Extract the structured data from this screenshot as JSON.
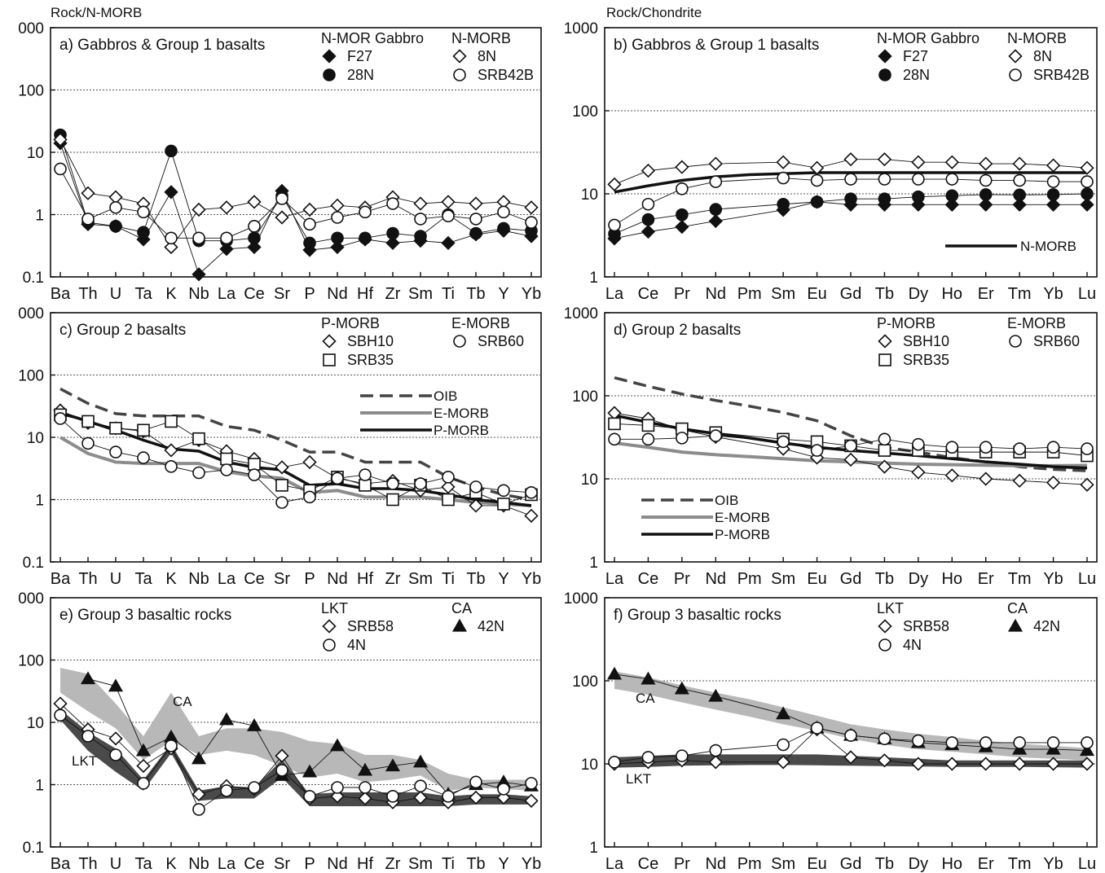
{
  "figure": {
    "ylabel_left": "Rock/N-MORB",
    "ylabel_right": "Rock/Chondrite"
  },
  "chart_data": [
    {
      "id": "a",
      "type": "line",
      "yscale": "log",
      "ylim": [
        0.1,
        1000
      ],
      "ytick_labels": [
        "000",
        "100",
        "10",
        "1",
        "0.1"
      ],
      "title": "a) Gabbros & Group 1 basalts",
      "categories": [
        "Ba",
        "Th",
        "U",
        "Ta",
        "K",
        "Nb",
        "La",
        "Ce",
        "Sr",
        "P",
        "Nd",
        "Hf",
        "Zr",
        "Sm",
        "Ti",
        "Tb",
        "Y",
        "Yb"
      ],
      "legend": [
        {
          "group": "N-MOR Gabbro",
          "entries": [
            "F27",
            "28N"
          ]
        },
        {
          "group": "N-MORB",
          "entries": [
            "8N",
            "SRB42B"
          ]
        }
      ],
      "series": [
        {
          "name": "F27",
          "marker": "diamond-filled",
          "values": [
            14,
            0.7,
            0.65,
            0.4,
            2.3,
            0.11,
            0.28,
            0.3,
            2.4,
            0.27,
            0.3,
            0.4,
            0.35,
            0.38,
            0.35,
            0.48,
            0.55,
            0.45
          ]
        },
        {
          "name": "28N",
          "marker": "circle-filled",
          "values": [
            19,
            0.75,
            0.65,
            0.52,
            10.5,
            0.38,
            0.38,
            0.42,
            2.0,
            0.35,
            0.42,
            0.42,
            0.5,
            0.45,
            1.0,
            0.5,
            0.6,
            0.55
          ]
        },
        {
          "name": "8N",
          "marker": "diamond-open",
          "values": [
            16,
            2.2,
            1.9,
            1.5,
            0.3,
            1.2,
            1.3,
            1.6,
            0.9,
            1.2,
            1.4,
            1.3,
            1.9,
            1.5,
            1.6,
            1.5,
            1.6,
            1.3
          ]
        },
        {
          "name": "SRB42B",
          "marker": "circle-open",
          "values": [
            5.4,
            0.85,
            1.3,
            1.1,
            0.42,
            0.42,
            0.42,
            0.65,
            1.8,
            0.7,
            0.9,
            1.1,
            1.5,
            0.85,
            0.95,
            0.85,
            1.1,
            0.75
          ]
        }
      ]
    },
    {
      "id": "b",
      "type": "line",
      "yscale": "log",
      "ylim": [
        1,
        1000
      ],
      "ytick_labels": [
        "1000",
        "100",
        "10",
        "1"
      ],
      "title": "b) Gabbros & Group 1 basalts",
      "categories": [
        "La",
        "Ce",
        "Pr",
        "Nd",
        "Pm",
        "Sm",
        "Eu",
        "Gd",
        "Tb",
        "Dy",
        "Ho",
        "Er",
        "Tm",
        "Yb",
        "Lu"
      ],
      "legend": [
        {
          "group": "N-MOR Gabbro",
          "entries": [
            "F27",
            "28N"
          ]
        },
        {
          "group": "N-MORB",
          "entries": [
            "8N",
            "SRB42B"
          ]
        }
      ],
      "reference_lines": [
        {
          "name": "N-MORB",
          "style": "thick-black",
          "values": [
            10.5,
            12.5,
            14.5,
            16,
            17,
            17.5,
            18,
            18,
            18,
            18,
            18,
            18,
            18,
            18,
            18
          ]
        }
      ],
      "series": [
        {
          "name": "F27",
          "marker": "diamond-filled",
          "values": [
            2.9,
            3.5,
            4.0,
            4.7,
            null,
            6.4,
            8.0,
            7.4,
            7.4,
            7.4,
            7.4,
            7.4,
            7.4,
            7.4,
            7.4
          ]
        },
        {
          "name": "28N",
          "marker": "circle-filled",
          "values": [
            3.3,
            4.9,
            5.6,
            6.5,
            null,
            7.5,
            8.0,
            8.7,
            8.7,
            9.2,
            9.5,
            9.8,
            9.7,
            9.8,
            10.0
          ]
        },
        {
          "name": "8N",
          "marker": "diamond-open",
          "values": [
            13,
            19,
            21,
            23,
            null,
            24,
            20.5,
            26,
            26,
            24,
            24,
            23,
            23,
            22,
            20.5
          ]
        },
        {
          "name": "SRB42B",
          "marker": "circle-open",
          "values": [
            4.2,
            7.5,
            11.5,
            14,
            null,
            15.5,
            14.5,
            15,
            15,
            15,
            15,
            14.5,
            14.5,
            14,
            14
          ]
        }
      ]
    },
    {
      "id": "c",
      "type": "line",
      "yscale": "log",
      "ylim": [
        0.1,
        1000
      ],
      "ytick_labels": [
        "000",
        "100",
        "10",
        "1",
        "0.1"
      ],
      "title": "c) Group 2 basalts",
      "categories": [
        "Ba",
        "Th",
        "U",
        "Ta",
        "K",
        "Nb",
        "La",
        "Ce",
        "Sr",
        "P",
        "Nd",
        "Hf",
        "Zr",
        "Sm",
        "Ti",
        "Tb",
        "Y",
        "Yb"
      ],
      "legend": [
        {
          "group": "P-MORB",
          "entries": [
            "SBH10",
            "SRB35"
          ]
        },
        {
          "group": "E-MORB",
          "entries": [
            "SRB60"
          ]
        }
      ],
      "reference_legend": [
        "OIB",
        "E-MORB",
        "P-MORB"
      ],
      "reference_lines": [
        {
          "name": "OIB",
          "style": "dashed",
          "values": [
            60,
            35,
            24,
            22,
            22,
            22,
            15,
            13,
            9,
            5.8,
            5.8,
            4,
            4,
            4,
            2.3,
            1.6,
            1.2,
            1.0
          ]
        },
        {
          "name": "E-MORB",
          "style": "thick-gray",
          "values": [
            10,
            5.5,
            4,
            3.8,
            3.8,
            3.8,
            2.8,
            2.4,
            2.2,
            1.3,
            1.4,
            1.1,
            1.1,
            1.1,
            1.0,
            0.9,
            0.85,
            0.8
          ]
        },
        {
          "name": "P-MORB",
          "style": "thick-black",
          "values": [
            25,
            18,
            13,
            9,
            6.5,
            6,
            4,
            3.3,
            3,
            1.7,
            1.8,
            1.5,
            1.5,
            1.4,
            1.2,
            1.0,
            0.9,
            0.8
          ]
        }
      ],
      "series": [
        {
          "name": "SBH10",
          "marker": "diamond-open",
          "values": [
            27,
            17,
            14,
            12.5,
            6.2,
            9,
            6,
            4.5,
            3.3,
            4,
            2.2,
            1.8,
            2,
            1.4,
            1.6,
            0.8,
            0.8,
            0.55
          ]
        },
        {
          "name": "SRB35",
          "marker": "square-open",
          "values": [
            23,
            18,
            14,
            13,
            18,
            9.5,
            4.5,
            3.7,
            1.7,
            1.4,
            2.3,
            1.7,
            1.0,
            1.7,
            1.0,
            1.3,
            0.85,
            1.2
          ]
        },
        {
          "name": "SRB60",
          "marker": "circle-open",
          "values": [
            20,
            8,
            5.8,
            4.7,
            3.4,
            2.7,
            3,
            2.5,
            0.9,
            1.1,
            2.2,
            2.5,
            1.8,
            1.8,
            2.3,
            1.6,
            1.4,
            1.3
          ]
        }
      ]
    },
    {
      "id": "d",
      "type": "line",
      "yscale": "log",
      "ylim": [
        1,
        1000
      ],
      "ytick_labels": [
        "1000",
        "100",
        "10",
        "1"
      ],
      "title": "d) Group 2 basalts",
      "categories": [
        "La",
        "Ce",
        "Pr",
        "Nd",
        "Pm",
        "Sm",
        "Eu",
        "Gd",
        "Tb",
        "Dy",
        "Ho",
        "Er",
        "Tm",
        "Yb",
        "Lu"
      ],
      "legend": [
        {
          "group": "P-MORB",
          "entries": [
            "SBH10",
            "SRB35"
          ]
        },
        {
          "group": "E-MORB",
          "entries": [
            "SRB60"
          ]
        }
      ],
      "reference_legend": [
        "OIB",
        "E-MORB",
        "P-MORB"
      ],
      "reference_lines": [
        {
          "name": "OIB",
          "style": "dashed",
          "values": [
            165,
            130,
            105,
            88,
            75,
            63,
            50,
            33,
            24,
            21,
            18,
            16,
            14,
            13,
            12.5
          ]
        },
        {
          "name": "E-MORB",
          "style": "thick-gray",
          "values": [
            27,
            24,
            21,
            19.5,
            18.5,
            17.5,
            16.5,
            16,
            15.5,
            15,
            14.8,
            14.6,
            14.4,
            14.4,
            14.5
          ]
        },
        {
          "name": "P-MORB",
          "style": "thick-black",
          "values": [
            58,
            48,
            40,
            35,
            31,
            27,
            24,
            22,
            20.5,
            19,
            17.5,
            16,
            15,
            14,
            13.5
          ]
        }
      ],
      "series": [
        {
          "name": "SBH10",
          "marker": "diamond-open",
          "values": [
            62,
            53,
            39,
            32,
            null,
            23,
            18,
            17,
            14,
            12,
            11,
            10,
            9.5,
            9,
            8.5
          ]
        },
        {
          "name": "SRB35",
          "marker": "square-open",
          "values": [
            46,
            44,
            40,
            36,
            null,
            30,
            28,
            25,
            22,
            22,
            21,
            21,
            21,
            21,
            19
          ]
        },
        {
          "name": "SRB60",
          "marker": "circle-open",
          "values": [
            30,
            30,
            31,
            33,
            null,
            28,
            22,
            25,
            30,
            26,
            24,
            24,
            23,
            24,
            23
          ]
        }
      ]
    },
    {
      "id": "e",
      "type": "line",
      "yscale": "log",
      "ylim": [
        0.1,
        1000
      ],
      "ytick_labels": [
        "000",
        "100",
        "10",
        "1",
        "0.1"
      ],
      "title": "e) Group 3 basaltic rocks",
      "categories": [
        "Ba",
        "Th",
        "U",
        "Ta",
        "K",
        "Nb",
        "La",
        "Ce",
        "Sr",
        "P",
        "Nd",
        "Hf",
        "Zr",
        "Sm",
        "Ti",
        "Tb",
        "Y",
        "Yb"
      ],
      "legend": [
        {
          "group": "LKT",
          "entries": [
            "SRB58",
            "4N"
          ]
        },
        {
          "group": "CA",
          "entries": [
            "42N"
          ]
        }
      ],
      "band_labels": [
        "CA",
        "LKT"
      ],
      "bands": [
        {
          "name": "CA",
          "color": "#b8b8b8",
          "upper": [
            75,
            60,
            20,
            6,
            30,
            6,
            8,
            8,
            7,
            5,
            4.5,
            3,
            3,
            2.5,
            1.5,
            1.2,
            1.2,
            1.2
          ],
          "lower": [
            30,
            15,
            8,
            2.5,
            5,
            3,
            3.5,
            3,
            2,
            1.3,
            1.5,
            1.1,
            1.2,
            1.4,
            0.8,
            0.9,
            0.85,
            0.8
          ]
        },
        {
          "name": "LKT",
          "color": "#4a4a4a",
          "upper": [
            16,
            7,
            3.8,
            1.2,
            4.5,
            0.8,
            0.95,
            0.9,
            2.5,
            0.7,
            0.75,
            0.75,
            0.75,
            0.75,
            0.65,
            0.7,
            0.7,
            0.65
          ]
        },
        {
          "name": "LKT-lower",
          "color": "#4a4a4a",
          "upper": [
            11,
            3.5,
            1.6,
            0.8,
            3.2,
            0.55,
            0.6,
            0.6,
            1.3,
            0.45,
            0.45,
            0.45,
            0.45,
            0.45,
            0.45,
            0.48,
            0.48,
            0.48
          ]
        }
      ],
      "series": [
        {
          "name": "42N",
          "marker": "triangle-filled",
          "values": [
            null,
            50,
            38,
            3.5,
            5.8,
            2.6,
            11,
            8.8,
            1.4,
            1.6,
            4.2,
            1.7,
            2,
            2.3,
            0.7,
            1,
            1.1,
            0.95
          ]
        },
        {
          "name": "SRB58",
          "marker": "diamond-open",
          "values": [
            20,
            7.7,
            5.5,
            2,
            3.8,
            0.7,
            0.95,
            0.85,
            2.9,
            0.6,
            0.65,
            0.6,
            0.52,
            0.62,
            0.52,
            0.62,
            0.62,
            0.55
          ]
        },
        {
          "name": "4N",
          "marker": "circle-open",
          "values": [
            13,
            6,
            3,
            1.05,
            4.2,
            0.4,
            0.8,
            0.9,
            1.7,
            0.65,
            0.9,
            0.9,
            0.65,
            0.95,
            0.65,
            1.1,
            0.85,
            1.05
          ]
        }
      ]
    },
    {
      "id": "f",
      "type": "line",
      "yscale": "log",
      "ylim": [
        1,
        1000
      ],
      "ytick_labels": [
        "1000",
        "100",
        "10",
        "1"
      ],
      "title": "f) Group 3 basaltic rocks",
      "categories": [
        "La",
        "Ce",
        "Pr",
        "Nd",
        "Pm",
        "Sm",
        "Eu",
        "Gd",
        "Tb",
        "Dy",
        "Ho",
        "Er",
        "Tm",
        "Yb",
        "Lu"
      ],
      "legend": [
        {
          "group": "LKT",
          "entries": [
            "SRB58",
            "4N"
          ]
        },
        {
          "group": "CA",
          "entries": [
            "42N"
          ]
        }
      ],
      "band_labels": [
        "CA",
        "LKT"
      ],
      "bands": [
        {
          "name": "CA",
          "color": "#b8b8b8",
          "upper": [
            130,
            110,
            88,
            72,
            60,
            48,
            38,
            30,
            26,
            23,
            21,
            19,
            17.5,
            16.5,
            15.5
          ],
          "lower": [
            80,
            68,
            55,
            45,
            37,
            30,
            25,
            20,
            17,
            15,
            14,
            13,
            12,
            11.5,
            11
          ]
        },
        {
          "name": "LKT",
          "color": "#4a4a4a",
          "upper": [
            12,
            12.5,
            13,
            13,
            13,
            13,
            13,
            12.5,
            12,
            11.5,
            11,
            11,
            11,
            11,
            11
          ],
          "lower": [
            9,
            9.2,
            9.5,
            9.6,
            9.7,
            9.7,
            9.6,
            9.5,
            9.4,
            9.3,
            9.2,
            9.2,
            9.2,
            9.1,
            9
          ]
        }
      ],
      "series": [
        {
          "name": "42N",
          "marker": "triangle-filled",
          "values": [
            120,
            105,
            80,
            65,
            null,
            40,
            27,
            22,
            20,
            18,
            17,
            16,
            15,
            15,
            14.5
          ]
        },
        {
          "name": "SRB58",
          "marker": "diamond-open",
          "values": [
            10,
            10.5,
            11,
            10.5,
            null,
            10.5,
            26,
            12,
            11,
            10,
            10,
            10,
            10,
            10,
            10
          ]
        },
        {
          "name": "4N",
          "marker": "circle-open",
          "values": [
            10.5,
            12,
            12.5,
            14.5,
            null,
            17,
            27,
            22,
            20,
            19,
            18,
            18,
            18,
            18,
            18
          ]
        }
      ]
    }
  ]
}
